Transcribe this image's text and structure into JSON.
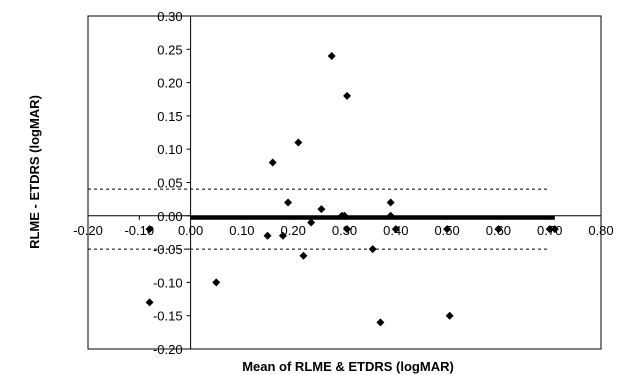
{
  "chart_data": {
    "type": "scatter",
    "xlabel": "Mean of RLME & ETDRS (logMAR)",
    "ylabel": "RLME - ETDRS (logMAR)",
    "xlim": [
      -0.2,
      0.8
    ],
    "ylim": [
      -0.2,
      0.3
    ],
    "x_ticks": [
      "-0.20",
      "-0.10",
      "0.00",
      "0.10",
      "0.20",
      "0.30",
      "0.40",
      "0.50",
      "0.60",
      "0.70",
      "0.80"
    ],
    "y_ticks": [
      "0.30",
      "0.25",
      "0.20",
      "0.15",
      "0.10",
      "0.05",
      "0.00",
      "-0.05",
      "-0.10",
      "-0.15",
      "-0.20"
    ],
    "grid": false,
    "marker": "diamond",
    "color": "#000000",
    "reference_lines": [
      {
        "y": 0.04,
        "style": "dashed"
      },
      {
        "y": -0.05,
        "style": "dashed"
      }
    ],
    "zero_band": {
      "x_from": 0.0,
      "x_to": 0.71,
      "y": 0.0
    },
    "points": [
      {
        "x": -0.08,
        "y": -0.13
      },
      {
        "x": -0.08,
        "y": -0.02
      },
      {
        "x": 0.05,
        "y": -0.1
      },
      {
        "x": 0.15,
        "y": -0.03
      },
      {
        "x": 0.16,
        "y": 0.08
      },
      {
        "x": 0.18,
        "y": -0.03
      },
      {
        "x": 0.19,
        "y": 0.02
      },
      {
        "x": 0.21,
        "y": 0.11
      },
      {
        "x": 0.22,
        "y": -0.06
      },
      {
        "x": 0.235,
        "y": -0.01
      },
      {
        "x": 0.255,
        "y": 0.01
      },
      {
        "x": 0.275,
        "y": 0.24
      },
      {
        "x": 0.295,
        "y": 0.0
      },
      {
        "x": 0.3,
        "y": 0.0
      },
      {
        "x": 0.305,
        "y": 0.18
      },
      {
        "x": 0.305,
        "y": -0.02
      },
      {
        "x": 0.355,
        "y": -0.05
      },
      {
        "x": 0.37,
        "y": -0.16
      },
      {
        "x": 0.39,
        "y": 0.02
      },
      {
        "x": 0.39,
        "y": 0.0
      },
      {
        "x": 0.4,
        "y": -0.02
      },
      {
        "x": 0.5,
        "y": -0.02
      },
      {
        "x": 0.505,
        "y": -0.15
      },
      {
        "x": 0.6,
        "y": -0.02
      },
      {
        "x": 0.7,
        "y": -0.02
      },
      {
        "x": 0.71,
        "y": -0.02
      }
    ]
  }
}
